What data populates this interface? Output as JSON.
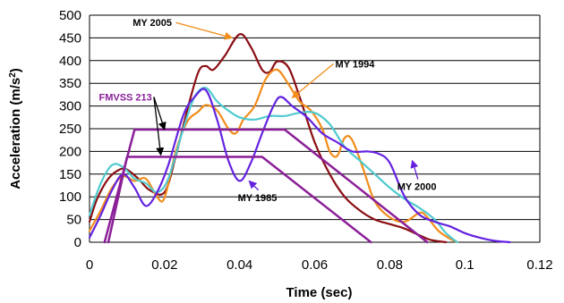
{
  "chart_data": {
    "type": "line",
    "title": "",
    "xlabel": "Time (sec)",
    "ylabel": "Acceleration (m/s²)",
    "ylabel_parts": {
      "main": "Acceleration (m/s",
      "sup": "2",
      "close": ")"
    },
    "xlim": [
      0,
      0.12
    ],
    "ylim": [
      0,
      500
    ],
    "xticks": [
      0,
      0.02,
      0.04,
      0.06,
      0.08,
      0.1,
      0.12
    ],
    "xtick_labels": [
      "0",
      "0.02",
      "0.04",
      "0.06",
      "0.08",
      "0.1",
      "0.12"
    ],
    "yticks": [
      0,
      50,
      100,
      150,
      200,
      250,
      300,
      350,
      400,
      450,
      500
    ],
    "ytick_labels": [
      "0",
      "50",
      "100",
      "150",
      "200",
      "250",
      "300",
      "350",
      "400",
      "450",
      "500"
    ],
    "grid": {
      "horizontal": true,
      "vertical": false
    },
    "legend": "none",
    "series": [
      {
        "name": "MY 2005",
        "color": "#8B0F14",
        "points": [
          [
            0,
            45
          ],
          [
            0.002,
            95
          ],
          [
            0.005,
            140
          ],
          [
            0.008,
            160
          ],
          [
            0.01,
            160
          ],
          [
            0.013,
            140
          ],
          [
            0.016,
            115
          ],
          [
            0.02,
            110
          ],
          [
            0.023,
            190
          ],
          [
            0.026,
            290
          ],
          [
            0.029,
            375
          ],
          [
            0.031,
            388
          ],
          [
            0.033,
            380
          ],
          [
            0.036,
            410
          ],
          [
            0.04,
            458
          ],
          [
            0.043,
            430
          ],
          [
            0.046,
            380
          ],
          [
            0.048,
            375
          ],
          [
            0.05,
            398
          ],
          [
            0.053,
            385
          ],
          [
            0.056,
            320
          ],
          [
            0.06,
            220
          ],
          [
            0.064,
            150
          ],
          [
            0.068,
            100
          ],
          [
            0.072,
            70
          ],
          [
            0.076,
            50
          ],
          [
            0.08,
            40
          ],
          [
            0.084,
            30
          ],
          [
            0.088,
            15
          ],
          [
            0.091,
            5
          ],
          [
            0.095,
            0
          ]
        ]
      },
      {
        "name": "MY 1994",
        "color": "#F28C1B",
        "points": [
          [
            0,
            25
          ],
          [
            0.003,
            70
          ],
          [
            0.006,
            120
          ],
          [
            0.009,
            145
          ],
          [
            0.012,
            135
          ],
          [
            0.015,
            140
          ],
          [
            0.018,
            100
          ],
          [
            0.02,
            98
          ],
          [
            0.023,
            200
          ],
          [
            0.026,
            265
          ],
          [
            0.029,
            288
          ],
          [
            0.031,
            302
          ],
          [
            0.034,
            290
          ],
          [
            0.037,
            250
          ],
          [
            0.039,
            240
          ],
          [
            0.041,
            270
          ],
          [
            0.044,
            300
          ],
          [
            0.047,
            360
          ],
          [
            0.05,
            380
          ],
          [
            0.053,
            348
          ],
          [
            0.056,
            310
          ],
          [
            0.059,
            290
          ],
          [
            0.062,
            250
          ],
          [
            0.064,
            200
          ],
          [
            0.066,
            190
          ],
          [
            0.068,
            230
          ],
          [
            0.07,
            225
          ],
          [
            0.073,
            160
          ],
          [
            0.076,
            90
          ],
          [
            0.08,
            55
          ],
          [
            0.084,
            45
          ],
          [
            0.088,
            65
          ],
          [
            0.09,
            55
          ],
          [
            0.093,
            25
          ],
          [
            0.096,
            8
          ],
          [
            0.098,
            0
          ]
        ]
      },
      {
        "name": "MY 2000",
        "color": "#50CACF",
        "points": [
          [
            0,
            60
          ],
          [
            0.003,
            130
          ],
          [
            0.006,
            170
          ],
          [
            0.009,
            165
          ],
          [
            0.012,
            140
          ],
          [
            0.015,
            130
          ],
          [
            0.018,
            110
          ],
          [
            0.021,
            140
          ],
          [
            0.025,
            250
          ],
          [
            0.028,
            320
          ],
          [
            0.031,
            340
          ],
          [
            0.034,
            310
          ],
          [
            0.037,
            290
          ],
          [
            0.04,
            275
          ],
          [
            0.044,
            270
          ],
          [
            0.048,
            278
          ],
          [
            0.052,
            278
          ],
          [
            0.056,
            285
          ],
          [
            0.06,
            285
          ],
          [
            0.064,
            260
          ],
          [
            0.068,
            210
          ],
          [
            0.072,
            180
          ],
          [
            0.076,
            150
          ],
          [
            0.08,
            120
          ],
          [
            0.084,
            95
          ],
          [
            0.088,
            75
          ],
          [
            0.092,
            50
          ],
          [
            0.095,
            20
          ],
          [
            0.098,
            0
          ]
        ]
      },
      {
        "name": "MY 1985",
        "color": "#6422E0",
        "points": [
          [
            0,
            10
          ],
          [
            0.003,
            60
          ],
          [
            0.006,
            115
          ],
          [
            0.009,
            150
          ],
          [
            0.012,
            120
          ],
          [
            0.015,
            80
          ],
          [
            0.018,
            110
          ],
          [
            0.021,
            170
          ],
          [
            0.025,
            280
          ],
          [
            0.028,
            320
          ],
          [
            0.031,
            335
          ],
          [
            0.034,
            270
          ],
          [
            0.037,
            180
          ],
          [
            0.04,
            135
          ],
          [
            0.043,
            175
          ],
          [
            0.046,
            240
          ],
          [
            0.049,
            300
          ],
          [
            0.051,
            320
          ],
          [
            0.054,
            300
          ],
          [
            0.058,
            275
          ],
          [
            0.062,
            240
          ],
          [
            0.066,
            220
          ],
          [
            0.07,
            200
          ],
          [
            0.074,
            200
          ],
          [
            0.077,
            195
          ],
          [
            0.08,
            175
          ],
          [
            0.084,
            100
          ],
          [
            0.088,
            60
          ],
          [
            0.092,
            45
          ],
          [
            0.096,
            35
          ],
          [
            0.1,
            20
          ],
          [
            0.104,
            10
          ],
          [
            0.108,
            3
          ],
          [
            0.112,
            0
          ]
        ]
      },
      {
        "name": "FMVSS 213",
        "color": "#8B1F98",
        "points": [
          [
            0.004,
            0
          ],
          [
            0.012,
            248
          ],
          [
            0.052,
            248
          ],
          [
            0.09,
            0
          ]
        ]
      },
      {
        "name": "FMVSS 213",
        "color": "#8B1F98",
        "points": [
          [
            0.005,
            0
          ],
          [
            0.01,
            188
          ],
          [
            0.046,
            188
          ],
          [
            0.075,
            0
          ]
        ]
      }
    ],
    "annotations": [
      {
        "text": "MY 2005",
        "color": "#000000",
        "x": 0.0115,
        "y": 476,
        "arrow_to": [
          0.038,
          450
        ],
        "arrow_color": "#F28C1B"
      },
      {
        "text": "MY 1994",
        "color": "#000000",
        "x": 0.0655,
        "y": 385,
        "arrow_to": [
          0.054,
          318
        ],
        "arrow_color": "#F28C1B"
      },
      {
        "text": "FMVSS 213",
        "color": "#8B1F98",
        "x": 0.0025,
        "y": 312,
        "arrow_to": [
          0.02,
          248
        ],
        "arrow_color": "#000000",
        "arrow_to_2": [
          0.019,
          192
        ]
      },
      {
        "text": "MY 2000",
        "color": "#000000",
        "x": 0.082,
        "y": 115,
        "arrow_to": [
          0.086,
          180
        ],
        "arrow_color": "#6422E0"
      },
      {
        "text": "MY 1985",
        "color": "#000000",
        "x": 0.0395,
        "y": 91,
        "arrow_to": [
          0.0425,
          135
        ],
        "arrow_color": "#6422E0"
      }
    ]
  }
}
